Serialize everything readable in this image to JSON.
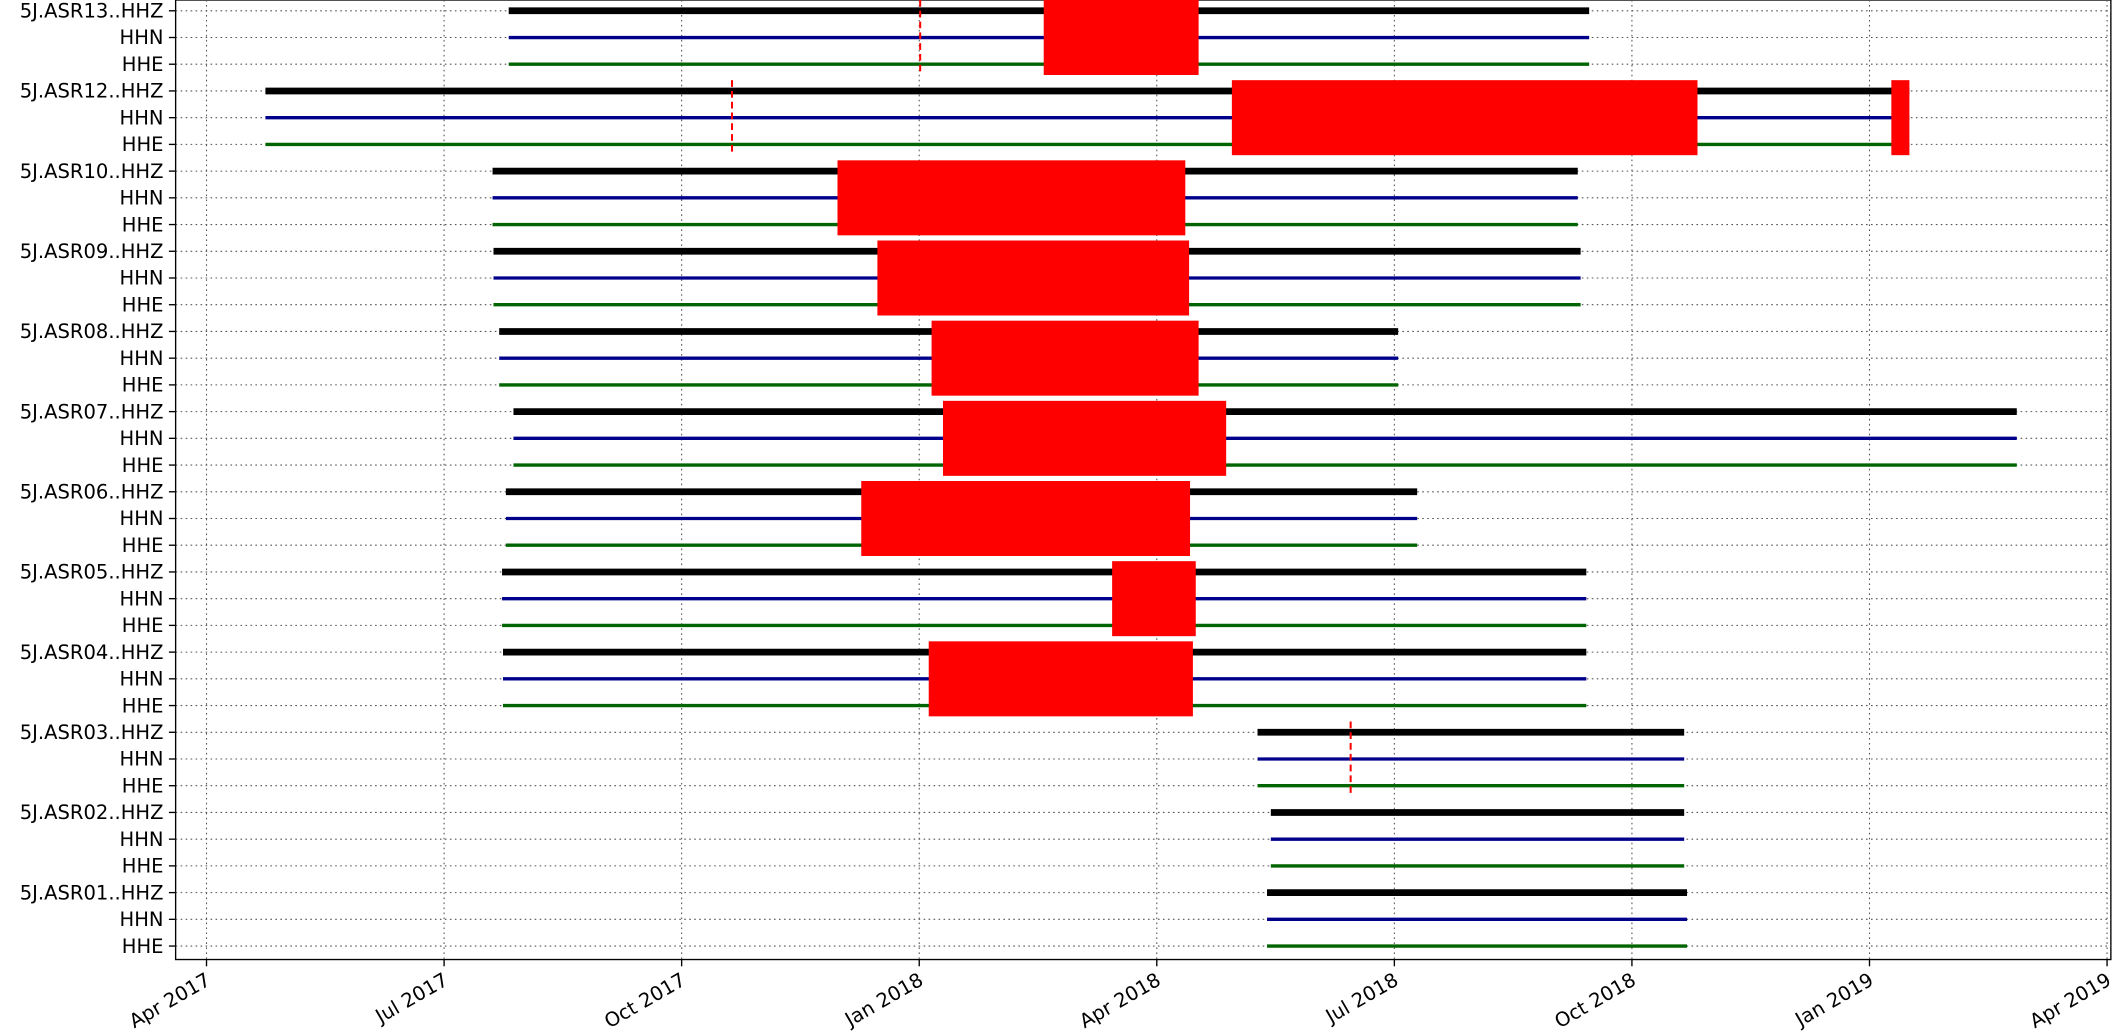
{
  "chart_data": {
    "type": "availability",
    "xlim": [
      2017.2175,
      2019.254
    ],
    "xticks": [
      {
        "value": 2017.25,
        "label": "Apr 2017"
      },
      {
        "value": 2017.5,
        "label": "Jul 2017"
      },
      {
        "value": 2017.75,
        "label": "Oct 2017"
      },
      {
        "value": 2018.0,
        "label": "Jan 2018"
      },
      {
        "value": 2018.25,
        "label": "Apr 2018"
      },
      {
        "value": 2018.5,
        "label": "Jul 2018"
      },
      {
        "value": 2018.75,
        "label": "Oct 2018"
      },
      {
        "value": 2019.0,
        "label": "Jan 2019"
      },
      {
        "value": 2019.25,
        "label": "Apr 2019"
      }
    ],
    "grid": true,
    "channel_colors": [
      "#000000",
      "#00008b",
      "#006400"
    ],
    "gap_color": "#ff0000",
    "stations": [
      {
        "channels": [
          "5J.ASR13..HHZ",
          "HHN",
          "HHE"
        ],
        "segments": [
          [
            2017.568,
            2018.705
          ]
        ],
        "gaps": [
          [
            2018.0,
            2018.002
          ],
          [
            2018.131,
            2018.294
          ]
        ]
      },
      {
        "channels": [
          "5J.ASR12..HHZ",
          "HHN",
          "HHE"
        ],
        "segments": [
          [
            2017.312,
            2019.042
          ]
        ],
        "gaps": [
          [
            2017.802,
            2017.804
          ],
          [
            2018.329,
            2018.819
          ],
          [
            2019.023,
            2019.042
          ]
        ]
      },
      {
        "channels": [
          "5J.ASR10..HHZ",
          "HHN",
          "HHE"
        ],
        "segments": [
          [
            2017.551,
            2018.693
          ]
        ],
        "gaps": [
          [
            2017.914,
            2018.28
          ]
        ]
      },
      {
        "channels": [
          "5J.ASR09..HHZ",
          "HHN",
          "HHE"
        ],
        "segments": [
          [
            2017.552,
            2018.696
          ]
        ],
        "gaps": [
          [
            2017.956,
            2018.284
          ]
        ]
      },
      {
        "channels": [
          "5J.ASR08..HHZ",
          "HHN",
          "HHE"
        ],
        "segments": [
          [
            2017.558,
            2018.504
          ]
        ],
        "gaps": [
          [
            2018.013,
            2018.294
          ]
        ]
      },
      {
        "channels": [
          "5J.ASR07..HHZ",
          "HHN",
          "HHE"
        ],
        "segments": [
          [
            2017.573,
            2019.155
          ]
        ],
        "gaps": [
          [
            2018.025,
            2018.323
          ]
        ]
      },
      {
        "channels": [
          "5J.ASR06..HHZ",
          "HHN",
          "HHE"
        ],
        "segments": [
          [
            2017.565,
            2018.524
          ]
        ],
        "gaps": [
          [
            2017.939,
            2018.285
          ]
        ]
      },
      {
        "channels": [
          "5J.ASR05..HHZ",
          "HHN",
          "HHE"
        ],
        "segments": [
          [
            2017.561,
            2018.702
          ]
        ],
        "gaps": [
          [
            2018.203,
            2018.291
          ]
        ]
      },
      {
        "channels": [
          "5J.ASR04..HHZ",
          "HHN",
          "HHE"
        ],
        "segments": [
          [
            2017.562,
            2018.702
          ]
        ],
        "gaps": [
          [
            2018.01,
            2018.288
          ]
        ]
      },
      {
        "channels": [
          "5J.ASR03..HHZ",
          "HHN",
          "HHE"
        ],
        "segments": [
          [
            2018.356,
            2018.805
          ]
        ],
        "gaps": [
          [
            2018.453,
            2018.455
          ]
        ]
      },
      {
        "channels": [
          "5J.ASR02..HHZ",
          "HHN",
          "HHE"
        ],
        "segments": [
          [
            2018.37,
            2018.805
          ]
        ],
        "gaps": []
      },
      {
        "channels": [
          "5J.ASR01..HHZ",
          "HHN",
          "HHE"
        ],
        "segments": [
          [
            2018.366,
            2018.808
          ]
        ],
        "gaps": []
      }
    ]
  }
}
